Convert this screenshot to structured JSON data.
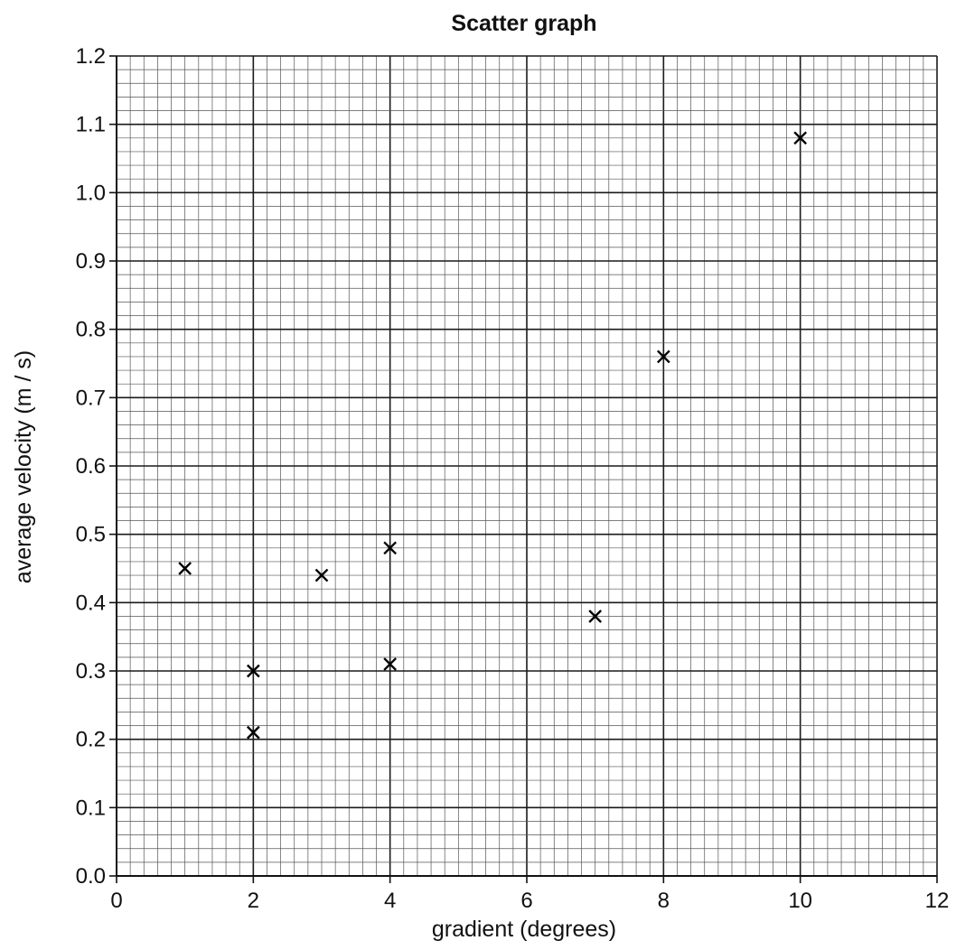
{
  "chart_data": {
    "type": "scatter",
    "title": "Scatter graph",
    "xlabel": "gradient (degrees)",
    "ylabel": "average velocity (m / s)",
    "xlim": [
      0,
      12
    ],
    "ylim": [
      0,
      1.2
    ],
    "x_ticks": [
      "0",
      "2",
      "4",
      "6",
      "8",
      "10",
      "12"
    ],
    "y_ticks": [
      "0.0",
      "0.1",
      "0.2",
      "0.3",
      "0.4",
      "0.5",
      "0.6",
      "0.7",
      "0.8",
      "0.9",
      "1.0",
      "1.1",
      "1.2"
    ],
    "grid": true,
    "marker": "cross",
    "points": [
      {
        "x": 1,
        "y": 0.45
      },
      {
        "x": 2,
        "y": 0.3
      },
      {
        "x": 2,
        "y": 0.21
      },
      {
        "x": 3,
        "y": 0.44
      },
      {
        "x": 4,
        "y": 0.48
      },
      {
        "x": 4,
        "y": 0.31
      },
      {
        "x": 7,
        "y": 0.38
      },
      {
        "x": 8,
        "y": 0.76
      },
      {
        "x": 10,
        "y": 1.08
      }
    ]
  }
}
